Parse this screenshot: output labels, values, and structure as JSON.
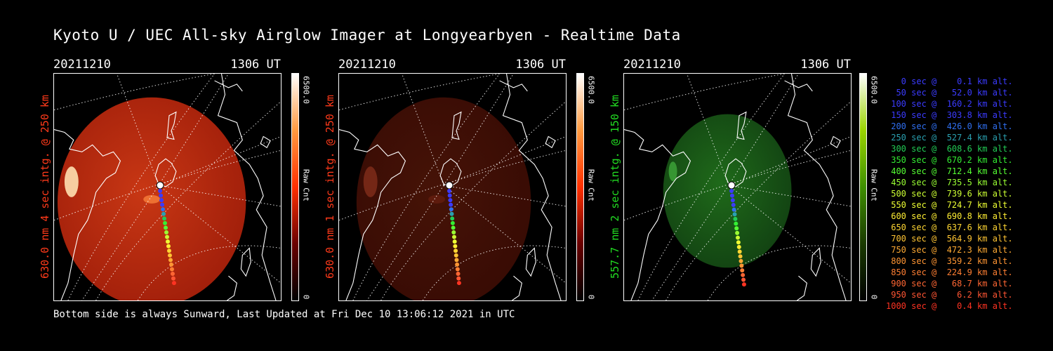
{
  "title": "Kyoto U / UEC All-sky Airglow Imager at Longyearbyen - Realtime Data",
  "footer": "Bottom side is always Sunward, Last Updated at Fri Dec 10 13:06:12 2021 in UTC",
  "panels": [
    {
      "date": "20211210",
      "time": "1306 UT",
      "label": "630.0 nm 4 sec intg. @ 250 km",
      "label_color": "#ff3a1a",
      "cbar_max": "6500.0",
      "cbar_unit": "Raw Cnt",
      "cbar_min": "0",
      "tint": "red",
      "brightness": 1.0
    },
    {
      "date": "20211210",
      "time": "1306 UT",
      "label": "630.0 nm 1 sec intg. @ 250 km",
      "label_color": "#ff3a1a",
      "cbar_max": "6500.0",
      "cbar_unit": "Raw Cnt",
      "cbar_min": "0",
      "tint": "red",
      "brightness": 0.35
    },
    {
      "date": "20211210",
      "time": "1306 UT",
      "label": "557.7 nm 2 sec intg. @ 150 km",
      "label_color": "#22dd22",
      "cbar_max": "6500.0",
      "cbar_unit": "Raw Cnt",
      "cbar_min": "0",
      "tint": "green",
      "brightness": 0.8
    }
  ],
  "legend": [
    {
      "text": "   0 sec @    0.1 km alt.",
      "color": "#3b3bff"
    },
    {
      "text": "  50 sec @   52.0 km alt.",
      "color": "#3b3bff"
    },
    {
      "text": " 100 sec @  160.2 km alt.",
      "color": "#3b3bff"
    },
    {
      "text": " 150 sec @  303.8 km alt.",
      "color": "#3b3bff"
    },
    {
      "text": " 200 sec @  426.0 km alt.",
      "color": "#2f6ff0"
    },
    {
      "text": " 250 sec @  527.4 km alt.",
      "color": "#2aa0b0"
    },
    {
      "text": " 300 sec @  608.6 km alt.",
      "color": "#22cc55"
    },
    {
      "text": " 350 sec @  670.2 km alt.",
      "color": "#33ee33"
    },
    {
      "text": " 400 sec @  712.4 km alt.",
      "color": "#55ff33"
    },
    {
      "text": " 450 sec @  735.5 km alt.",
      "color": "#99ff33"
    },
    {
      "text": " 500 sec @  739.6 km alt.",
      "color": "#ccff33"
    },
    {
      "text": " 550 sec @  724.7 km alt.",
      "color": "#eeff33"
    },
    {
      "text": " 600 sec @  690.8 km alt.",
      "color": "#ffee33"
    },
    {
      "text": " 650 sec @  637.6 km alt.",
      "color": "#ffd633"
    },
    {
      "text": " 700 sec @  564.9 km alt.",
      "color": "#ffc433"
    },
    {
      "text": " 750 sec @  472.3 km alt.",
      "color": "#ffaa33"
    },
    {
      "text": " 800 sec @  359.2 km alt.",
      "color": "#ff9533"
    },
    {
      "text": " 850 sec @  224.9 km alt.",
      "color": "#ff7f33"
    },
    {
      "text": " 900 sec @   68.7 km alt.",
      "color": "#ff6633"
    },
    {
      "text": " 950 sec @    6.2 km alt.",
      "color": "#ff5533"
    },
    {
      "text": "1000 sec @    0.4 km alt.",
      "color": "#ff3322"
    }
  ]
}
